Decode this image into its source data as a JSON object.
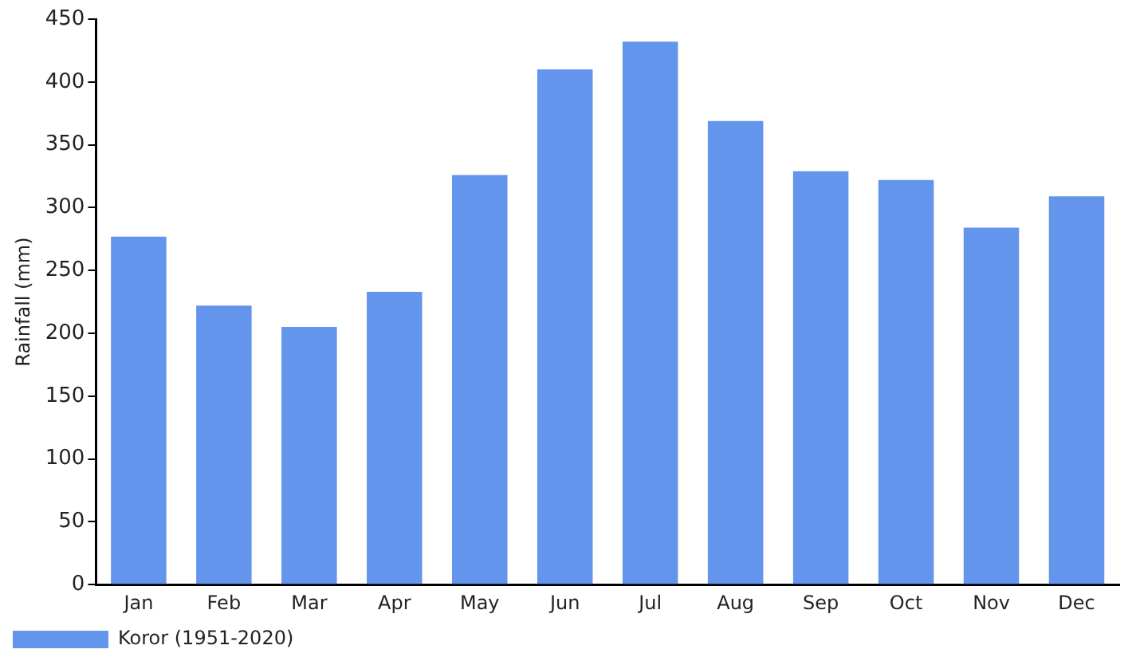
{
  "chart_data": {
    "type": "bar",
    "ylabel": "Rainfall (mm)",
    "categories": [
      "Jan",
      "Feb",
      "Mar",
      "Apr",
      "May",
      "Jun",
      "Jul",
      "Aug",
      "Sep",
      "Oct",
      "Nov",
      "Dec"
    ],
    "series": [
      {
        "name": "Koror (1951-2020)",
        "color": "#6495ed",
        "values": [
          277,
          222,
          205,
          233,
          326,
          410,
          432,
          369,
          329,
          322,
          284,
          309
        ]
      }
    ],
    "ylim": [
      0,
      450
    ],
    "yticks": [
      0,
      50,
      100,
      150,
      200,
      250,
      300,
      350,
      400,
      450
    ],
    "grid": false,
    "legend": "bottom left"
  }
}
